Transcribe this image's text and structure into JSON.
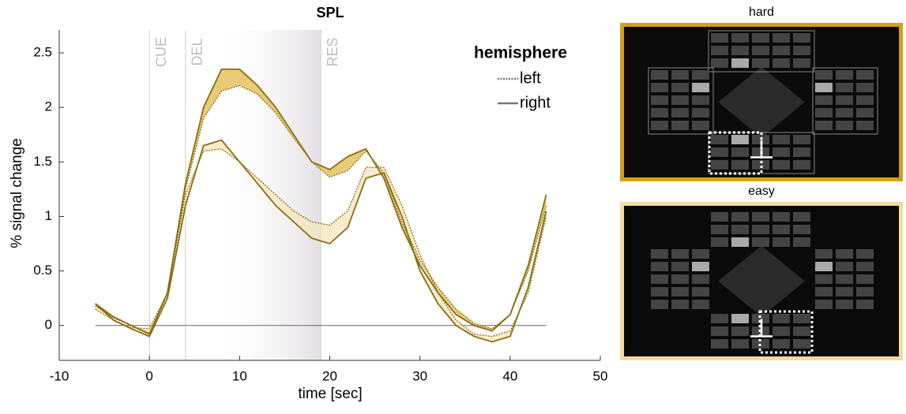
{
  "chart_data": {
    "type": "line",
    "title": "SPL",
    "x_label": "time [sec]",
    "y_label": "% signal change",
    "x": [
      -6,
      -4,
      -2,
      0,
      2,
      4,
      6,
      8,
      10,
      12,
      14,
      16,
      18,
      20,
      22,
      24,
      26,
      28,
      30,
      32,
      34,
      36,
      38,
      40,
      42,
      44
    ],
    "series": [
      {
        "name": "left",
        "condition": "hard",
        "style": "dotted",
        "color": "#8a6d10",
        "fill": "#e3b94a",
        "values": [
          0.18,
          0.07,
          0.0,
          -0.07,
          0.3,
          1.25,
          1.9,
          2.15,
          2.2,
          2.12,
          1.95,
          1.72,
          1.5,
          1.36,
          1.42,
          1.6,
          1.4,
          0.95,
          0.6,
          0.35,
          0.15,
          0.02,
          -0.03,
          0.1,
          0.5,
          1.1
        ]
      },
      {
        "name": "right",
        "condition": "hard",
        "style": "solid",
        "color": "#8a6d10",
        "fill": "#e3b94a",
        "values": [
          0.2,
          0.08,
          0.0,
          -0.08,
          0.3,
          1.3,
          2.0,
          2.35,
          2.35,
          2.2,
          2.0,
          1.75,
          1.5,
          1.43,
          1.55,
          1.62,
          1.35,
          0.9,
          0.55,
          0.3,
          0.1,
          0.0,
          -0.05,
          0.1,
          0.55,
          1.2
        ]
      },
      {
        "name": "left",
        "condition": "easy",
        "style": "dotted",
        "color": "#8a6d10",
        "fill": "#f6e6bd",
        "values": [
          0.15,
          0.05,
          -0.02,
          -0.03,
          0.3,
          1.2,
          1.6,
          1.62,
          1.5,
          1.35,
          1.2,
          1.05,
          0.95,
          0.92,
          1.05,
          1.45,
          1.45,
          1.1,
          0.65,
          0.3,
          0.05,
          -0.08,
          -0.1,
          -0.05,
          0.3,
          1.0
        ]
      },
      {
        "name": "right",
        "condition": "easy",
        "style": "solid",
        "color": "#8a6d10",
        "fill": "#f6e6bd",
        "values": [
          0.2,
          0.05,
          -0.03,
          -0.1,
          0.25,
          1.1,
          1.65,
          1.7,
          1.5,
          1.3,
          1.1,
          0.95,
          0.8,
          0.75,
          0.9,
          1.35,
          1.4,
          1.0,
          0.5,
          0.2,
          0.0,
          -0.1,
          -0.15,
          -0.1,
          0.35,
          1.05
        ]
      }
    ],
    "legend": {
      "title": "hemisphere",
      "entries": [
        {
          "label": "left",
          "style": "dotted"
        },
        {
          "label": "right",
          "style": "solid"
        }
      ]
    },
    "events": [
      {
        "label": "CUE",
        "x": 0
      },
      {
        "label": "DEL",
        "x": 4
      },
      {
        "label": "RES",
        "x": 19
      }
    ],
    "shade": [
      7,
      19
    ],
    "xlim": [
      -10,
      50
    ],
    "xticks": [
      -10,
      0,
      10,
      20,
      30,
      40,
      50
    ],
    "ylim": [
      -0.32,
      2.71
    ],
    "yticks": [
      0,
      0.5,
      1,
      1.5,
      2,
      2.5
    ]
  },
  "panels": [
    {
      "title": "hard",
      "border": "#d4a017"
    },
    {
      "title": "easy",
      "border": "#f3dba0"
    }
  ]
}
